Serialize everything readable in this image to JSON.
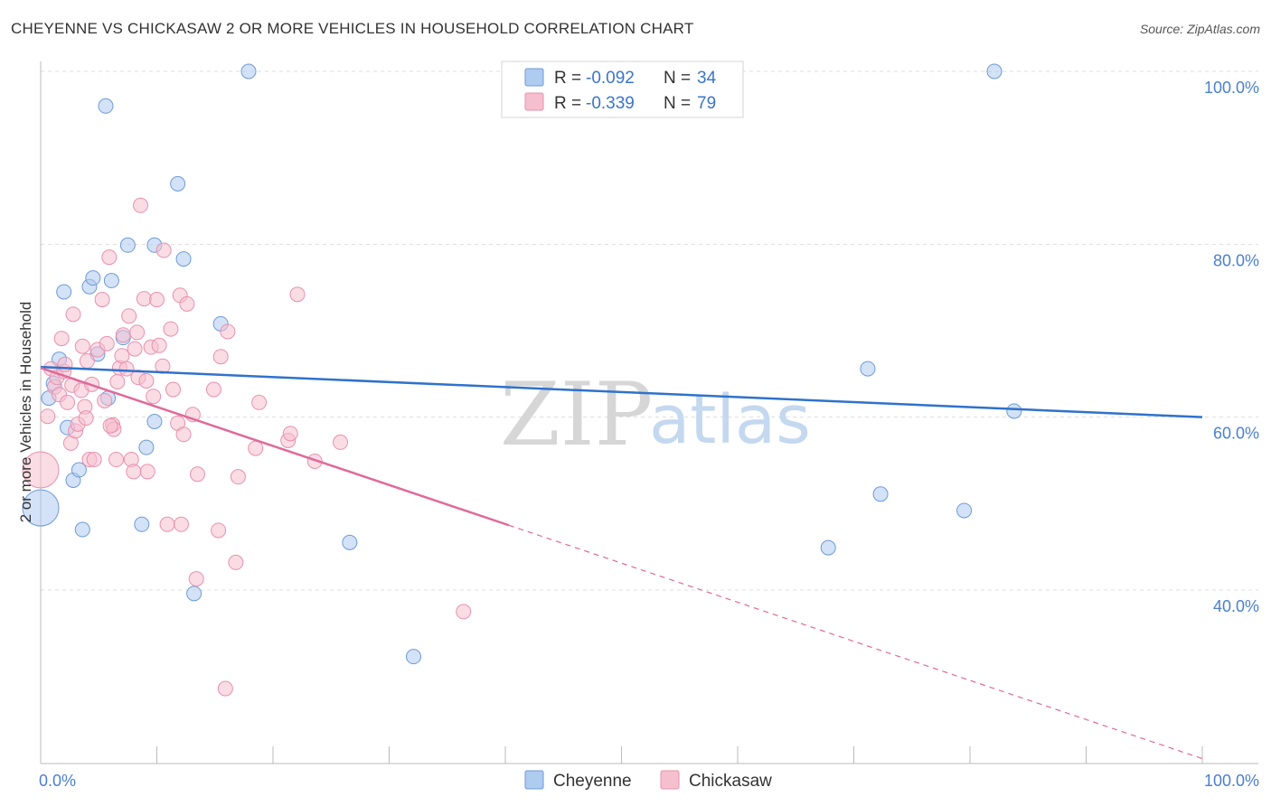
{
  "title": "CHEYENNE VS CHICKASAW 2 OR MORE VEHICLES IN HOUSEHOLD CORRELATION CHART",
  "source": "Source: ZipAtlas.com",
  "watermark": {
    "zip": "ZIP",
    "atlas": "atlas"
  },
  "legend": {
    "rows": [
      {
        "r_label": "R =",
        "r_value": "-0.092",
        "n_label": "N =",
        "n_value": "34"
      },
      {
        "r_label": "R =",
        "r_value": "-0.339",
        "n_label": "N =",
        "n_value": "79"
      }
    ]
  },
  "bottom_legend": [
    "Cheyenne",
    "Chickasaw"
  ],
  "colors": {
    "cheyenne_fill": "#aecbf0",
    "cheyenne_stroke": "#6d9bd8",
    "cheyenne_line": "#2f72cc",
    "chickasaw_fill": "#f6bfd0",
    "chickasaw_stroke": "#e891ad",
    "chickasaw_line": "#e0699a",
    "grid": "#dddddd",
    "axis": "#bbbbbb",
    "tick_text": "#4a7fd0"
  },
  "chart_data": {
    "type": "scatter",
    "title": "CHEYENNE VS CHICKASAW 2 OR MORE VEHICLES IN HOUSEHOLD CORRELATION CHART",
    "xlabel": "",
    "ylabel": "2 or more Vehicles in Household",
    "xlim": [
      0,
      100
    ],
    "ylim": [
      20,
      102
    ],
    "x_tick_labels": [
      "0.0%",
      "100.0%"
    ],
    "y_ticks": [
      40,
      60,
      80,
      100
    ],
    "y_tick_labels": [
      "40.0%",
      "60.0%",
      "80.0%",
      "100.0%"
    ],
    "grid": true,
    "legend_position": "top-center",
    "series": [
      {
        "name": "Cheyenne",
        "r": -0.092,
        "n": 34,
        "trend": {
          "x0": 0,
          "y0": 65.8,
          "x1": 100,
          "y1": 60.0
        },
        "points": [
          {
            "x": 0.0,
            "y": 49.5,
            "size": "large"
          },
          {
            "x": 0.7,
            "y": 62.2
          },
          {
            "x": 1.1,
            "y": 63.9
          },
          {
            "x": 1.6,
            "y": 66.7
          },
          {
            "x": 2.0,
            "y": 74.5
          },
          {
            "x": 2.3,
            "y": 58.8
          },
          {
            "x": 2.8,
            "y": 52.7
          },
          {
            "x": 3.3,
            "y": 53.9
          },
          {
            "x": 3.6,
            "y": 47.0
          },
          {
            "x": 4.2,
            "y": 75.1
          },
          {
            "x": 4.5,
            "y": 76.1
          },
          {
            "x": 4.9,
            "y": 67.3
          },
          {
            "x": 5.6,
            "y": 96.0
          },
          {
            "x": 5.8,
            "y": 62.2
          },
          {
            "x": 6.1,
            "y": 75.8
          },
          {
            "x": 7.1,
            "y": 69.2
          },
          {
            "x": 7.5,
            "y": 79.9
          },
          {
            "x": 8.7,
            "y": 47.6
          },
          {
            "x": 9.1,
            "y": 56.5
          },
          {
            "x": 9.8,
            "y": 59.5
          },
          {
            "x": 9.8,
            "y": 79.9
          },
          {
            "x": 11.8,
            "y": 87.0
          },
          {
            "x": 12.3,
            "y": 78.3
          },
          {
            "x": 13.2,
            "y": 39.6
          },
          {
            "x": 15.5,
            "y": 70.8
          },
          {
            "x": 17.9,
            "y": 100.0
          },
          {
            "x": 26.6,
            "y": 45.5
          },
          {
            "x": 32.1,
            "y": 32.3
          },
          {
            "x": 67.8,
            "y": 44.9
          },
          {
            "x": 71.2,
            "y": 65.6
          },
          {
            "x": 72.3,
            "y": 51.1
          },
          {
            "x": 79.5,
            "y": 49.2
          },
          {
            "x": 82.1,
            "y": 100.0
          },
          {
            "x": 83.8,
            "y": 60.7
          }
        ]
      },
      {
        "name": "Chickasaw",
        "r": -0.339,
        "n": 79,
        "trend": {
          "x0": 0,
          "y0": 65.7,
          "x1": 40.3,
          "y1": 47.5,
          "dash_to_x": 100,
          "dash_to_y": 20.5
        },
        "points": [
          {
            "x": 0.0,
            "y": 53.9,
            "size": "large"
          },
          {
            "x": 0.6,
            "y": 60.1
          },
          {
            "x": 0.9,
            "y": 65.6
          },
          {
            "x": 1.2,
            "y": 63.5
          },
          {
            "x": 1.4,
            "y": 64.6
          },
          {
            "x": 1.6,
            "y": 62.6
          },
          {
            "x": 1.8,
            "y": 69.1
          },
          {
            "x": 2.0,
            "y": 65.3
          },
          {
            "x": 2.3,
            "y": 61.7
          },
          {
            "x": 2.6,
            "y": 57.0
          },
          {
            "x": 2.7,
            "y": 63.7
          },
          {
            "x": 2.8,
            "y": 71.9
          },
          {
            "x": 3.0,
            "y": 58.4
          },
          {
            "x": 3.2,
            "y": 59.2
          },
          {
            "x": 3.5,
            "y": 63.1
          },
          {
            "x": 3.6,
            "y": 68.2
          },
          {
            "x": 3.8,
            "y": 61.2
          },
          {
            "x": 4.0,
            "y": 66.5
          },
          {
            "x": 4.2,
            "y": 55.1
          },
          {
            "x": 4.4,
            "y": 63.8
          },
          {
            "x": 4.6,
            "y": 55.1
          },
          {
            "x": 4.9,
            "y": 67.8
          },
          {
            "x": 5.3,
            "y": 73.6
          },
          {
            "x": 5.5,
            "y": 61.9
          },
          {
            "x": 5.7,
            "y": 68.5
          },
          {
            "x": 5.9,
            "y": 78.5
          },
          {
            "x": 6.2,
            "y": 59.1
          },
          {
            "x": 6.3,
            "y": 58.6
          },
          {
            "x": 6.5,
            "y": 55.1
          },
          {
            "x": 6.6,
            "y": 64.1
          },
          {
            "x": 6.8,
            "y": 65.7
          },
          {
            "x": 7.0,
            "y": 67.1
          },
          {
            "x": 7.1,
            "y": 69.5
          },
          {
            "x": 7.4,
            "y": 65.6
          },
          {
            "x": 7.6,
            "y": 71.7
          },
          {
            "x": 7.8,
            "y": 55.1
          },
          {
            "x": 8.0,
            "y": 53.7
          },
          {
            "x": 8.1,
            "y": 67.9
          },
          {
            "x": 8.3,
            "y": 69.8
          },
          {
            "x": 8.4,
            "y": 64.6
          },
          {
            "x": 8.6,
            "y": 84.5
          },
          {
            "x": 8.9,
            "y": 73.7
          },
          {
            "x": 9.1,
            "y": 64.2
          },
          {
            "x": 9.2,
            "y": 53.7
          },
          {
            "x": 9.5,
            "y": 68.1
          },
          {
            "x": 10.0,
            "y": 73.6
          },
          {
            "x": 10.2,
            "y": 68.3
          },
          {
            "x": 10.6,
            "y": 79.3
          },
          {
            "x": 10.9,
            "y": 47.6
          },
          {
            "x": 11.2,
            "y": 70.2
          },
          {
            "x": 11.4,
            "y": 63.2
          },
          {
            "x": 11.8,
            "y": 59.3
          },
          {
            "x": 12.0,
            "y": 74.1
          },
          {
            "x": 12.1,
            "y": 47.6
          },
          {
            "x": 12.3,
            "y": 58.0
          },
          {
            "x": 12.6,
            "y": 73.1
          },
          {
            "x": 13.1,
            "y": 60.3
          },
          {
            "x": 13.4,
            "y": 41.3
          },
          {
            "x": 13.5,
            "y": 53.4
          },
          {
            "x": 14.9,
            "y": 63.2
          },
          {
            "x": 15.3,
            "y": 46.9
          },
          {
            "x": 15.5,
            "y": 67.0
          },
          {
            "x": 16.1,
            "y": 69.9
          },
          {
            "x": 16.8,
            "y": 43.2
          },
          {
            "x": 17.0,
            "y": 53.1
          },
          {
            "x": 15.9,
            "y": 28.6
          },
          {
            "x": 18.5,
            "y": 56.4
          },
          {
            "x": 18.8,
            "y": 61.7
          },
          {
            "x": 21.3,
            "y": 57.3
          },
          {
            "x": 21.5,
            "y": 58.1
          },
          {
            "x": 22.1,
            "y": 74.2
          },
          {
            "x": 23.6,
            "y": 54.9
          },
          {
            "x": 25.8,
            "y": 57.1
          },
          {
            "x": 36.4,
            "y": 37.5
          },
          {
            "x": 6.0,
            "y": 59.0
          },
          {
            "x": 3.9,
            "y": 59.9
          },
          {
            "x": 2.1,
            "y": 66.1
          },
          {
            "x": 10.5,
            "y": 65.9
          },
          {
            "x": 9.7,
            "y": 62.4
          }
        ]
      }
    ]
  }
}
